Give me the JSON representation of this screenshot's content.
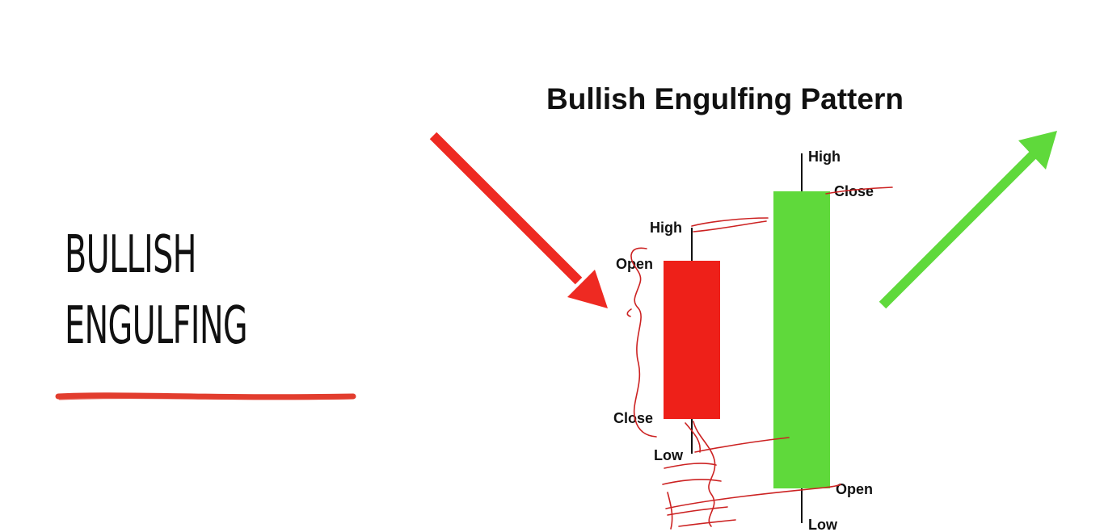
{
  "slide": {
    "title_line1": "BULLISH",
    "title_line2": "ENGULFING"
  },
  "diagram": {
    "title": "Bullish Engulfing Pattern",
    "bearish_candle": {
      "color": "#ee2019",
      "labels": {
        "high": "High",
        "open": "Open",
        "close": "Close",
        "low": "Low"
      }
    },
    "bullish_candle": {
      "color": "#5fd93b",
      "labels": {
        "high": "High",
        "close": "Close",
        "open": "Open",
        "low": "Low"
      }
    }
  },
  "colors": {
    "down_arrow": "#ee2a22",
    "up_arrow": "#5fd93b",
    "underline": "#e23d2e",
    "annotation_ink": "#cc2222"
  }
}
